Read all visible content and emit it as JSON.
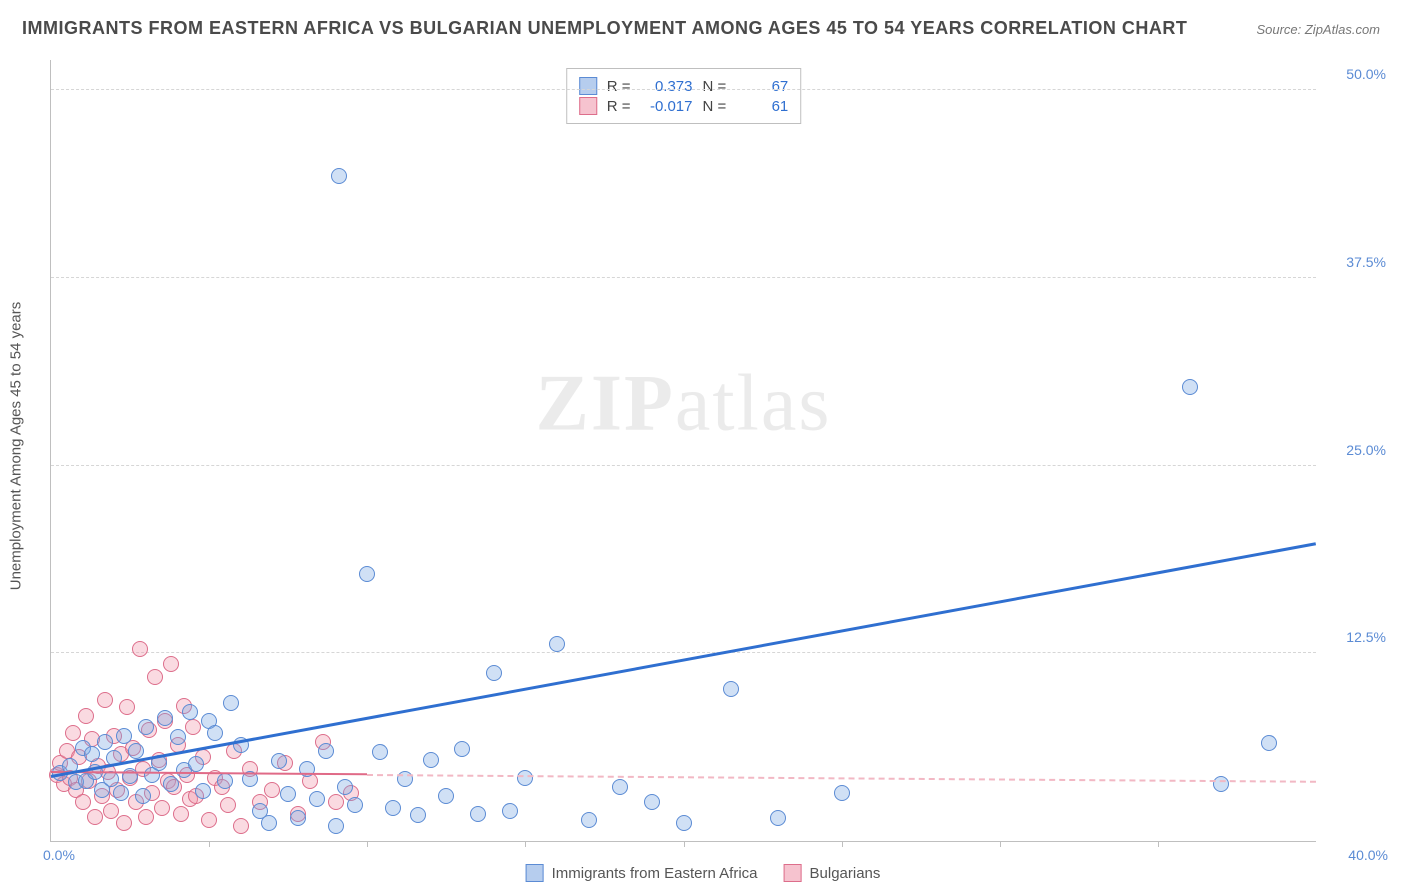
{
  "title": "IMMIGRANTS FROM EASTERN AFRICA VS BULGARIAN UNEMPLOYMENT AMONG AGES 45 TO 54 YEARS CORRELATION CHART",
  "source": "Source: ZipAtlas.com",
  "watermark": {
    "bold": "ZIP",
    "rest": "atlas"
  },
  "ylabel": "Unemployment Among Ages 45 to 54 years",
  "chart": {
    "type": "scatter",
    "xlim": [
      0,
      40
    ],
    "ylim": [
      0,
      52
    ],
    "xtick_step": 5,
    "ytick_positions": [
      12.5,
      25.0,
      37.5,
      50.0
    ],
    "ytick_labels": [
      "12.5%",
      "25.0%",
      "37.5%",
      "50.0%"
    ],
    "xmin_label": "0.0%",
    "xmax_label": "40.0%",
    "grid_color": "#d6d6d6",
    "axis_color": "#bfbfbf",
    "tick_color": "#5B8BD4",
    "marker_radius": 8,
    "marker_border_width": 1.5
  },
  "series": [
    {
      "name": "Immigrants from Eastern Africa",
      "fill": "rgba(120,165,225,0.35)",
      "stroke": "#5B8BD4",
      "swatch_fill": "#b6cdee",
      "swatch_border": "#5B8BD4",
      "R": "0.373",
      "N": "67",
      "trend": {
        "x1": 0,
        "y1": 4.2,
        "x2": 40,
        "y2": 19.7,
        "color": "#2f6fd0",
        "width": 3,
        "dash": "solid"
      },
      "points": [
        [
          0.3,
          4.5
        ],
        [
          0.6,
          5.0
        ],
        [
          0.8,
          3.9
        ],
        [
          1.0,
          6.2
        ],
        [
          1.1,
          4.0
        ],
        [
          1.3,
          5.8
        ],
        [
          1.4,
          4.6
        ],
        [
          1.6,
          3.4
        ],
        [
          1.7,
          6.6
        ],
        [
          1.9,
          4.1
        ],
        [
          2.0,
          5.5
        ],
        [
          2.2,
          3.2
        ],
        [
          2.3,
          7.0
        ],
        [
          2.5,
          4.3
        ],
        [
          2.7,
          6.0
        ],
        [
          2.9,
          3.0
        ],
        [
          3.0,
          7.6
        ],
        [
          3.2,
          4.4
        ],
        [
          3.4,
          5.2
        ],
        [
          3.6,
          8.2
        ],
        [
          3.8,
          3.8
        ],
        [
          4.0,
          6.9
        ],
        [
          4.2,
          4.7
        ],
        [
          4.4,
          8.6
        ],
        [
          4.6,
          5.1
        ],
        [
          4.8,
          3.3
        ],
        [
          5.0,
          8.0
        ],
        [
          5.2,
          7.2
        ],
        [
          5.5,
          4.0
        ],
        [
          5.7,
          9.2
        ],
        [
          6.0,
          6.4
        ],
        [
          6.3,
          4.1
        ],
        [
          6.6,
          2.0
        ],
        [
          6.9,
          1.2
        ],
        [
          7.2,
          5.3
        ],
        [
          7.5,
          3.1
        ],
        [
          7.8,
          1.5
        ],
        [
          8.1,
          4.8
        ],
        [
          8.4,
          2.8
        ],
        [
          8.7,
          6.0
        ],
        [
          9.0,
          1.0
        ],
        [
          9.3,
          3.6
        ],
        [
          9.6,
          2.4
        ],
        [
          10.0,
          17.8
        ],
        [
          9.1,
          44.3
        ],
        [
          10.4,
          5.9
        ],
        [
          10.8,
          2.2
        ],
        [
          11.2,
          4.1
        ],
        [
          11.6,
          1.7
        ],
        [
          12.0,
          5.4
        ],
        [
          12.5,
          3.0
        ],
        [
          13.0,
          6.1
        ],
        [
          13.5,
          1.8
        ],
        [
          14.0,
          11.2
        ],
        [
          14.5,
          2.0
        ],
        [
          15.0,
          4.2
        ],
        [
          16.0,
          13.1
        ],
        [
          17.0,
          1.4
        ],
        [
          18.0,
          3.6
        ],
        [
          19.0,
          2.6
        ],
        [
          20.0,
          1.2
        ],
        [
          21.5,
          10.1
        ],
        [
          23.0,
          1.5
        ],
        [
          25.0,
          3.2
        ],
        [
          36.0,
          30.2
        ],
        [
          37.0,
          3.8
        ],
        [
          38.5,
          6.5
        ]
      ]
    },
    {
      "name": "Bulgarians",
      "fill": "rgba(240,150,170,0.35)",
      "stroke": "#dd6e8b",
      "swatch_fill": "#f6c3cf",
      "swatch_border": "#dd6e8b",
      "R": "-0.017",
      "N": "61",
      "trend_solid": {
        "x1": 0,
        "y1": 4.5,
        "x2": 10,
        "y2": 4.35,
        "color": "#e06a87",
        "width": 2
      },
      "trend": {
        "x1": 10,
        "y1": 4.35,
        "x2": 40,
        "y2": 3.9,
        "color": "#f2b8c4",
        "width": 2,
        "dash": "dashed"
      },
      "points": [
        [
          0.2,
          4.4
        ],
        [
          0.3,
          5.2
        ],
        [
          0.4,
          3.8
        ],
        [
          0.5,
          6.0
        ],
        [
          0.6,
          4.2
        ],
        [
          0.7,
          7.2
        ],
        [
          0.8,
          3.4
        ],
        [
          0.9,
          5.6
        ],
        [
          1.0,
          2.6
        ],
        [
          1.1,
          8.3
        ],
        [
          1.2,
          4.0
        ],
        [
          1.3,
          6.8
        ],
        [
          1.4,
          1.6
        ],
        [
          1.5,
          5.0
        ],
        [
          1.6,
          3.0
        ],
        [
          1.7,
          9.4
        ],
        [
          1.8,
          4.6
        ],
        [
          1.9,
          2.0
        ],
        [
          2.0,
          7.0
        ],
        [
          2.1,
          3.4
        ],
        [
          2.2,
          5.8
        ],
        [
          2.3,
          1.2
        ],
        [
          2.4,
          8.9
        ],
        [
          2.5,
          4.2
        ],
        [
          2.6,
          6.2
        ],
        [
          2.7,
          2.6
        ],
        [
          2.8,
          12.8
        ],
        [
          2.9,
          4.8
        ],
        [
          3.0,
          1.6
        ],
        [
          3.1,
          7.4
        ],
        [
          3.2,
          3.2
        ],
        [
          3.3,
          10.9
        ],
        [
          3.4,
          5.4
        ],
        [
          3.5,
          2.2
        ],
        [
          3.6,
          8.0
        ],
        [
          3.7,
          4.0
        ],
        [
          3.8,
          11.8
        ],
        [
          3.9,
          3.6
        ],
        [
          4.0,
          6.4
        ],
        [
          4.1,
          1.8
        ],
        [
          4.2,
          9.0
        ],
        [
          4.3,
          4.4
        ],
        [
          4.4,
          2.8
        ],
        [
          4.5,
          7.6
        ],
        [
          4.6,
          3.0
        ],
        [
          4.8,
          5.6
        ],
        [
          5.0,
          1.4
        ],
        [
          5.2,
          4.2
        ],
        [
          5.4,
          3.6
        ],
        [
          5.6,
          2.4
        ],
        [
          5.8,
          6.0
        ],
        [
          6.0,
          1.0
        ],
        [
          6.3,
          4.8
        ],
        [
          6.6,
          2.6
        ],
        [
          7.0,
          3.4
        ],
        [
          7.4,
          5.2
        ],
        [
          7.8,
          1.8
        ],
        [
          8.2,
          4.0
        ],
        [
          8.6,
          6.6
        ],
        [
          9.0,
          2.6
        ],
        [
          9.5,
          3.2
        ]
      ]
    }
  ],
  "legend": {
    "items": [
      {
        "label": "Immigrants from Eastern Africa",
        "fill": "#b6cdee",
        "border": "#5B8BD4"
      },
      {
        "label": "Bulgarians",
        "fill": "#f6c3cf",
        "border": "#dd6e8b"
      }
    ]
  }
}
